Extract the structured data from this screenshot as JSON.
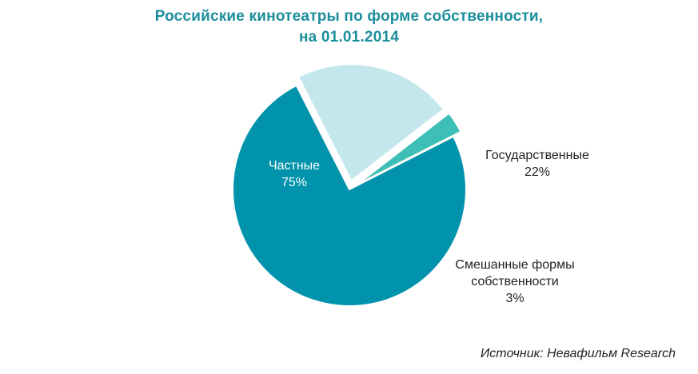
{
  "title_line1": "Российские кинотеатры  по форме собственности,",
  "title_line2": "на 01.01.2014",
  "source": "Источник: Невафильм Research",
  "chart_data": {
    "type": "pie",
    "title": "Российские кинотеатры  по форме собственности, на 01.01.2014",
    "legend": "none",
    "slices": [
      {
        "key": "private",
        "label_lines": [
          "Частные"
        ],
        "value": 75,
        "value_label": "75%",
        "color": "#0192ac",
        "label_color": "#ffffff"
      },
      {
        "key": "state",
        "label_lines": [
          "Государственные"
        ],
        "value": 22,
        "value_label": "22%",
        "color": "#c3e7ec",
        "label_color": "#222222"
      },
      {
        "key": "mixed",
        "label_lines": [
          "Смешанные формы",
          "собственности"
        ],
        "value": 3,
        "value_label": "3%",
        "color": "#3dbfb8",
        "label_color": "#222222"
      }
    ]
  }
}
